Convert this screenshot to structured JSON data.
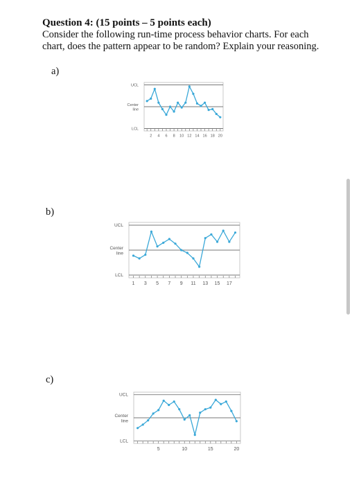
{
  "question": {
    "title": "Question 4: (15 points – 5 points each)",
    "body": "Consider the following run-time process behavior charts. For each chart, does the pattern appear to be random? Explain your reasoning."
  },
  "colors": {
    "line": "#3aa8d8",
    "axis": "#777777",
    "grid": "#bbbbbb"
  },
  "charts": [
    {
      "label": "a)",
      "ucl_label": "UCL",
      "center_label": [
        "Center",
        "line"
      ],
      "lcl_label": "LCL",
      "chart_data": {
        "type": "line",
        "x": [
          1,
          2,
          3,
          4,
          5,
          6,
          7,
          8,
          9,
          10,
          11,
          12,
          13,
          14,
          15,
          16,
          17,
          18,
          19,
          20
        ],
        "values": [
          0.7,
          1.0,
          2.2,
          0.5,
          -0.3,
          -1.0,
          0.0,
          -0.6,
          0.5,
          -0.1,
          0.5,
          2.5,
          1.6,
          0.4,
          0.1,
          0.5,
          -0.4,
          -0.3,
          -0.9,
          -1.3
        ],
        "ylim": [
          -3,
          3
        ],
        "xticks": [
          "2",
          "4",
          "6",
          "8",
          "10",
          "12",
          "14",
          "16",
          "18",
          "20"
        ]
      }
    },
    {
      "label": "b)",
      "ucl_label": "UCL",
      "center_label": [
        "Center",
        "line"
      ],
      "lcl_label": "LCL",
      "chart_data": {
        "type": "line",
        "x": [
          1,
          2,
          3,
          4,
          5,
          6,
          7,
          8,
          9,
          10,
          11,
          12,
          13,
          14,
          15,
          16,
          17,
          18
        ],
        "values": [
          -0.6,
          -0.9,
          -0.5,
          2.0,
          0.4,
          0.8,
          1.2,
          0.7,
          0.0,
          -0.3,
          -0.9,
          -1.8,
          1.3,
          1.7,
          0.9,
          2.1,
          0.9,
          1.9
        ],
        "ylim": [
          -3,
          3
        ],
        "xticks": [
          "1",
          "3",
          "5",
          "7",
          "9",
          "11",
          "13",
          "15",
          "17"
        ]
      }
    },
    {
      "label": "c)",
      "ucl_label": "UCL",
      "center_label": [
        "Center",
        "line"
      ],
      "lcl_label": "LCL",
      "chart_data": {
        "type": "line",
        "x": [
          1,
          2,
          3,
          4,
          5,
          6,
          7,
          8,
          9,
          10,
          11,
          12,
          13,
          14,
          15,
          16,
          17,
          18,
          19,
          20
        ],
        "values": [
          -1.2,
          -0.8,
          -0.3,
          0.5,
          0.9,
          2.0,
          1.5,
          1.9,
          1.0,
          -0.2,
          0.3,
          -2.0,
          0.6,
          1.0,
          1.2,
          2.1,
          1.6,
          1.9,
          0.8,
          -0.4
        ],
        "ylim": [
          -3,
          3
        ],
        "xticks": [
          "5",
          "10",
          "15",
          "20"
        ]
      }
    }
  ]
}
